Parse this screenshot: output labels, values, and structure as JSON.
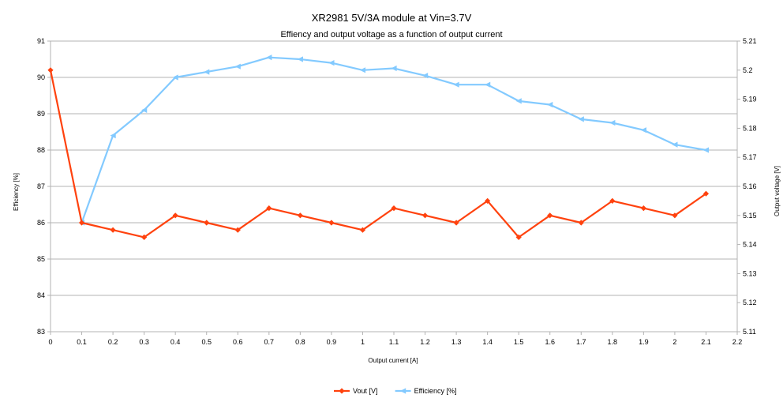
{
  "chart_data": {
    "type": "line",
    "title": "XR2981 5V/3A module at Vin=3.7V",
    "subtitle": "Effiency and output voltage as a function of output current",
    "xlabel": "Output current [A]",
    "ylabel_left": "Efficiency [%]",
    "ylabel_right": "Output voltage [V]",
    "xlim": [
      0,
      2.2
    ],
    "x_ticks": [
      "0",
      "0.1",
      "0.2",
      "0.3",
      "0.4",
      "0.5",
      "0.6",
      "0.7",
      "0.8",
      "0.9",
      "1",
      "1.1",
      "1.2",
      "1.3",
      "1.4",
      "1.5",
      "1.6",
      "1.7",
      "1.8",
      "1.9",
      "2",
      "2.1",
      "2.2"
    ],
    "ylim_left": [
      83,
      91
    ],
    "y_ticks_left": [
      "83",
      "84",
      "85",
      "86",
      "87",
      "88",
      "89",
      "90",
      "91"
    ],
    "ylim_right": [
      5.11,
      5.21
    ],
    "y_ticks_right": [
      "5.11",
      "5.12",
      "5.13",
      "5.14",
      "5.15",
      "5.16",
      "5.17",
      "5.18",
      "5.19",
      "5.2",
      "5.21"
    ],
    "grid": true,
    "legend_position": "bottom",
    "series": [
      {
        "name": "Vout [V]",
        "axis": "right",
        "color": "#ff420e",
        "marker": "diamond",
        "x": [
          0,
          0.1,
          0.2,
          0.3,
          0.4,
          0.5,
          0.6,
          0.7,
          0.8,
          0.9,
          1.0,
          1.1,
          1.2,
          1.3,
          1.4,
          1.5,
          1.6,
          1.7,
          1.8,
          1.9,
          2.0,
          2.1
        ],
        "values": [
          5.2,
          5.1475,
          5.145,
          5.1425,
          5.15,
          5.1475,
          5.145,
          5.1525,
          5.15,
          5.1475,
          5.145,
          5.1525,
          5.15,
          5.1475,
          5.155,
          5.1425,
          5.15,
          5.1475,
          5.155,
          5.1525,
          5.15,
          5.1575
        ]
      },
      {
        "name": "Efficiency [%]",
        "axis": "left",
        "color": "#83caff",
        "marker": "triangle-left",
        "x": [
          0.1,
          0.2,
          0.3,
          0.4,
          0.5,
          0.6,
          0.7,
          0.8,
          0.9,
          1.0,
          1.1,
          1.2,
          1.3,
          1.4,
          1.5,
          1.6,
          1.7,
          1.8,
          1.9,
          2.0,
          2.1
        ],
        "values": [
          86.0,
          88.4,
          89.1,
          90.0,
          90.15,
          90.3,
          90.55,
          90.5,
          90.4,
          90.2,
          90.25,
          90.05,
          89.8,
          89.8,
          89.35,
          89.25,
          88.85,
          88.75,
          88.55,
          88.15,
          88.0
        ]
      }
    ]
  }
}
